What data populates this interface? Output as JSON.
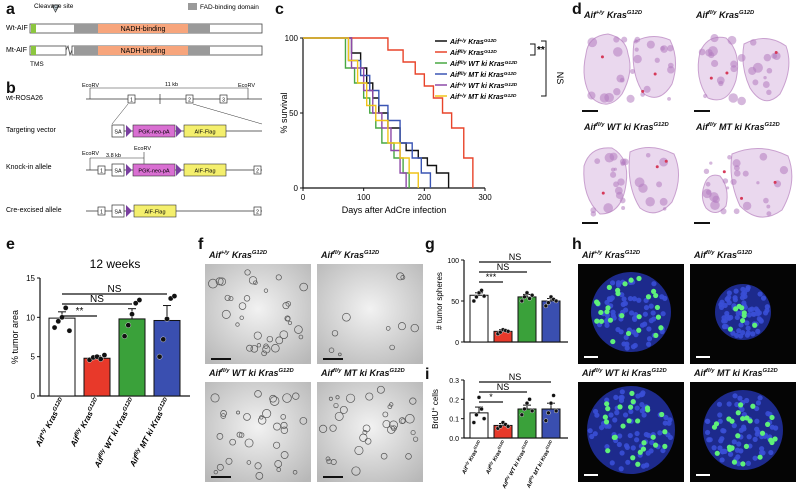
{
  "panels": {
    "a": {
      "letter": "a",
      "cleavage_label": "Cleavage site",
      "fad_legend": "FAD-binding domain",
      "tms_label": "TMS",
      "rows": [
        {
          "label": "Wt-AIF",
          "domain": "NADH-binding"
        },
        {
          "label": "Mt-AIF",
          "domain": "NADH-binding"
        }
      ]
    },
    "b": {
      "letter": "b",
      "rows": [
        "wt-ROSA26",
        "Targeting vector",
        "Knock-in allele",
        "Cre-excised allele"
      ],
      "ecorv": "EcoRV",
      "size_11": "11 kb",
      "size_38": "3.8 kb",
      "sa": "SA",
      "pgk": "PGK-neo-pA",
      "aif_flag": "AIF-Flag",
      "exons": [
        "1",
        "2",
        "3"
      ]
    },
    "c": {
      "letter": "c",
      "legend": [
        {
          "g": "Aif",
          "s": "+/y",
          "k": "Kras",
          "ks": "G12D",
          "color": "#111111"
        },
        {
          "g": "Aif",
          "s": "fl/y",
          "k": "Kras",
          "ks": "G12D",
          "color": "#e8442a"
        },
        {
          "g": "Aif",
          "s": "fl/y",
          "mid": "WT ki ",
          "k": "Kras",
          "ks": "G12D",
          "color": "#49a842"
        },
        {
          "g": "Aif",
          "s": "fl/y",
          "mid": "MT ki ",
          "k": "Kras",
          "ks": "G12D",
          "color": "#3a55b4"
        },
        {
          "g": "Aif",
          "s": "+/y",
          "mid": "WT ki ",
          "k": "Kras",
          "ks": "G12D",
          "color": "#8e4aa8"
        },
        {
          "g": "Aif",
          "s": "+/y",
          "mid": "MT ki ",
          "k": "Kras",
          "ks": "G12D",
          "color": "#f0c419"
        }
      ],
      "sig_star": "**",
      "sig_ns": "NS"
    },
    "d": {
      "letter": "d",
      "titles": [
        {
          "g": "Aif",
          "s": "+/y",
          "k": "Kras",
          "ks": "G12D"
        },
        {
          "g": "Aif",
          "s": "fl/y",
          "k": "Kras",
          "ks": "G12D"
        },
        {
          "g": "Aif",
          "s": "fl/y",
          "mid": " WT ki ",
          "k": "Kras",
          "ks": "G12D"
        },
        {
          "g": "Aif",
          "s": "fl/y",
          "mid": " MT ki ",
          "k": "Kras",
          "ks": "G12D"
        }
      ]
    },
    "e": {
      "letter": "e",
      "sig": [
        "**",
        "NS",
        "NS"
      ]
    },
    "f": {
      "letter": "f",
      "titles": [
        {
          "g": "Aif",
          "s": "+/y",
          "k": "Kras",
          "ks": "G12D"
        },
        {
          "g": "Aif",
          "s": "fl/y",
          "k": "Kras",
          "ks": "G12D"
        },
        {
          "g": "Aif",
          "s": "fl/y",
          "mid": " WT ki ",
          "k": "Kras",
          "ks": "G12D"
        },
        {
          "g": "Aif",
          "s": "fl/y",
          "mid": " MT ki ",
          "k": "Kras",
          "ks": "G12D"
        }
      ]
    },
    "g": {
      "letter": "g",
      "sig": [
        "***",
        "NS",
        "NS"
      ]
    },
    "h": {
      "letter": "h",
      "titles": [
        {
          "g": "Aif",
          "s": "+/y",
          "k": "Kras",
          "ks": "G12D"
        },
        {
          "g": "Aif",
          "s": "fl/y",
          "k": "Kras",
          "ks": "G12D"
        },
        {
          "g": "Aif",
          "s": "fl/y",
          "mid": " WT ki ",
          "k": "Kras",
          "ks": "G12D"
        },
        {
          "g": "Aif",
          "s": "fl/y",
          "mid": " MT ki ",
          "k": "Kras",
          "ks": "G12D"
        }
      ]
    },
    "i": {
      "letter": "i",
      "sig": [
        "*",
        "NS",
        "NS"
      ]
    }
  },
  "chart_data": [
    {
      "id": "c",
      "type": "line",
      "xlabel": "Days after AdCre infection",
      "ylabel": "% survival",
      "xlim": [
        0,
        300
      ],
      "ylim": [
        0,
        100
      ],
      "xticks": [
        0,
        100,
        200,
        300
      ],
      "yticks": [
        0,
        50,
        100
      ],
      "series": [
        {
          "color": "#111111",
          "x": [
            0,
            60,
            80,
            95,
            105,
            115,
            125,
            140,
            160,
            170,
            190,
            205,
            220,
            240
          ],
          "y": [
            100,
            100,
            90,
            80,
            70,
            60,
            50,
            40,
            30,
            25,
            20,
            15,
            10,
            0
          ]
        },
        {
          "color": "#e8442a",
          "x": [
            0,
            110,
            140,
            165,
            185,
            200,
            215,
            230,
            245,
            265,
            280
          ],
          "y": [
            100,
            100,
            92,
            84,
            76,
            68,
            60,
            50,
            40,
            20,
            0
          ]
        },
        {
          "color": "#49a842",
          "x": [
            0,
            50,
            70,
            85,
            100,
            110,
            120,
            130,
            150,
            165,
            175
          ],
          "y": [
            100,
            100,
            80,
            70,
            60,
            50,
            40,
            30,
            20,
            10,
            0
          ]
        },
        {
          "color": "#3a55b4",
          "x": [
            0,
            55,
            75,
            95,
            110,
            125,
            140,
            160,
            180,
            195,
            210
          ],
          "y": [
            100,
            100,
            85,
            75,
            65,
            55,
            45,
            30,
            20,
            10,
            0
          ]
        },
        {
          "color": "#8e4aa8",
          "x": [
            0,
            60,
            80,
            100,
            115,
            130,
            145,
            160,
            170
          ],
          "y": [
            100,
            100,
            80,
            65,
            50,
            40,
            25,
            10,
            0
          ]
        },
        {
          "color": "#f0c419",
          "x": [
            0,
            55,
            75,
            90,
            105,
            120,
            140,
            160,
            175,
            190
          ],
          "y": [
            100,
            100,
            85,
            70,
            55,
            45,
            30,
            20,
            10,
            0
          ]
        }
      ]
    },
    {
      "id": "e",
      "type": "bar",
      "title": "12 weeks",
      "ylabel": "% tumor area",
      "ylim": [
        0,
        15
      ],
      "yticks": [
        0,
        5,
        10,
        15
      ],
      "categories": [
        {
          "g": "Aif",
          "s": "+/y",
          "k": "Kras",
          "ks": "G12D"
        },
        {
          "g": "Aif",
          "s": "fl/y",
          "k": "Kras",
          "ks": "G12D"
        },
        {
          "g": "Aif",
          "s": "fl/y",
          "mid": " WT ki ",
          "k": "Kras",
          "ks": "G12D"
        },
        {
          "g": "Aif",
          "s": "fl/y",
          "mid": " MT ki ",
          "k": "Kras",
          "ks": "G12D"
        }
      ],
      "values": [
        9.9,
        4.8,
        9.8,
        9.6
      ],
      "errors": [
        0.8,
        0.3,
        1.3,
        1.9
      ],
      "colors": [
        "#ffffff",
        "#e8392a",
        "#3aa13a",
        "#3a4fb0"
      ],
      "points": [
        [
          8.7,
          9.5,
          10.0,
          11.2,
          8.3
        ],
        [
          4.6,
          4.9,
          5.0,
          4.7,
          5.2
        ],
        [
          7.6,
          9.0,
          10.4,
          11.8,
          12.2
        ],
        [
          5.0,
          7.2,
          9.8,
          12.4,
          12.7
        ]
      ]
    },
    {
      "id": "g",
      "type": "bar",
      "ylabel": "# tumor spheres",
      "ylim": [
        0,
        100
      ],
      "yticks": [
        0,
        50,
        100
      ],
      "values": [
        57,
        13,
        55,
        50
      ],
      "errors": [
        3,
        2,
        3,
        3
      ],
      "colors": [
        "#ffffff",
        "#e8392a",
        "#3aa13a",
        "#3a4fb0"
      ],
      "points": [
        [
          50,
          55,
          60,
          63,
          56
        ],
        [
          10,
          12,
          15,
          14,
          13
        ],
        [
          50,
          55,
          60,
          53,
          57
        ],
        [
          44,
          48,
          55,
          52,
          50
        ]
      ]
    },
    {
      "id": "i",
      "type": "bar",
      "ylabel": "BrdU",
      "ylabel_sup": "+",
      "ylabel_tail": " cells",
      "ylim": [
        0,
        0.3
      ],
      "yticks": [
        0.0,
        0.1,
        0.2,
        0.3
      ],
      "categories": [
        {
          "g": "Aif",
          "s": "+/y",
          "k": "Kras",
          "ks": "G12D"
        },
        {
          "g": "Aif",
          "s": "fl/y",
          "k": "Kras",
          "ks": "G12D"
        },
        {
          "g": "Aif",
          "s": "fl/y",
          "mid": " WT ki ",
          "k": "Kras",
          "ks": "G12D"
        },
        {
          "g": "Aif",
          "s": "fl/y",
          "mid": " MT ki ",
          "k": "Kras",
          "ks": "G12D"
        }
      ],
      "values": [
        0.13,
        0.065,
        0.15,
        0.15
      ],
      "errors": [
        0.03,
        0.01,
        0.02,
        0.03
      ],
      "colors": [
        "#ffffff",
        "#e8392a",
        "#3aa13a",
        "#3a4fb0"
      ],
      "points": [
        [
          0.08,
          0.12,
          0.21,
          0.15,
          0.1
        ],
        [
          0.05,
          0.06,
          0.08,
          0.07,
          0.06
        ],
        [
          0.12,
          0.15,
          0.18,
          0.2,
          0.14
        ],
        [
          0.09,
          0.13,
          0.18,
          0.22,
          0.14
        ]
      ]
    }
  ]
}
